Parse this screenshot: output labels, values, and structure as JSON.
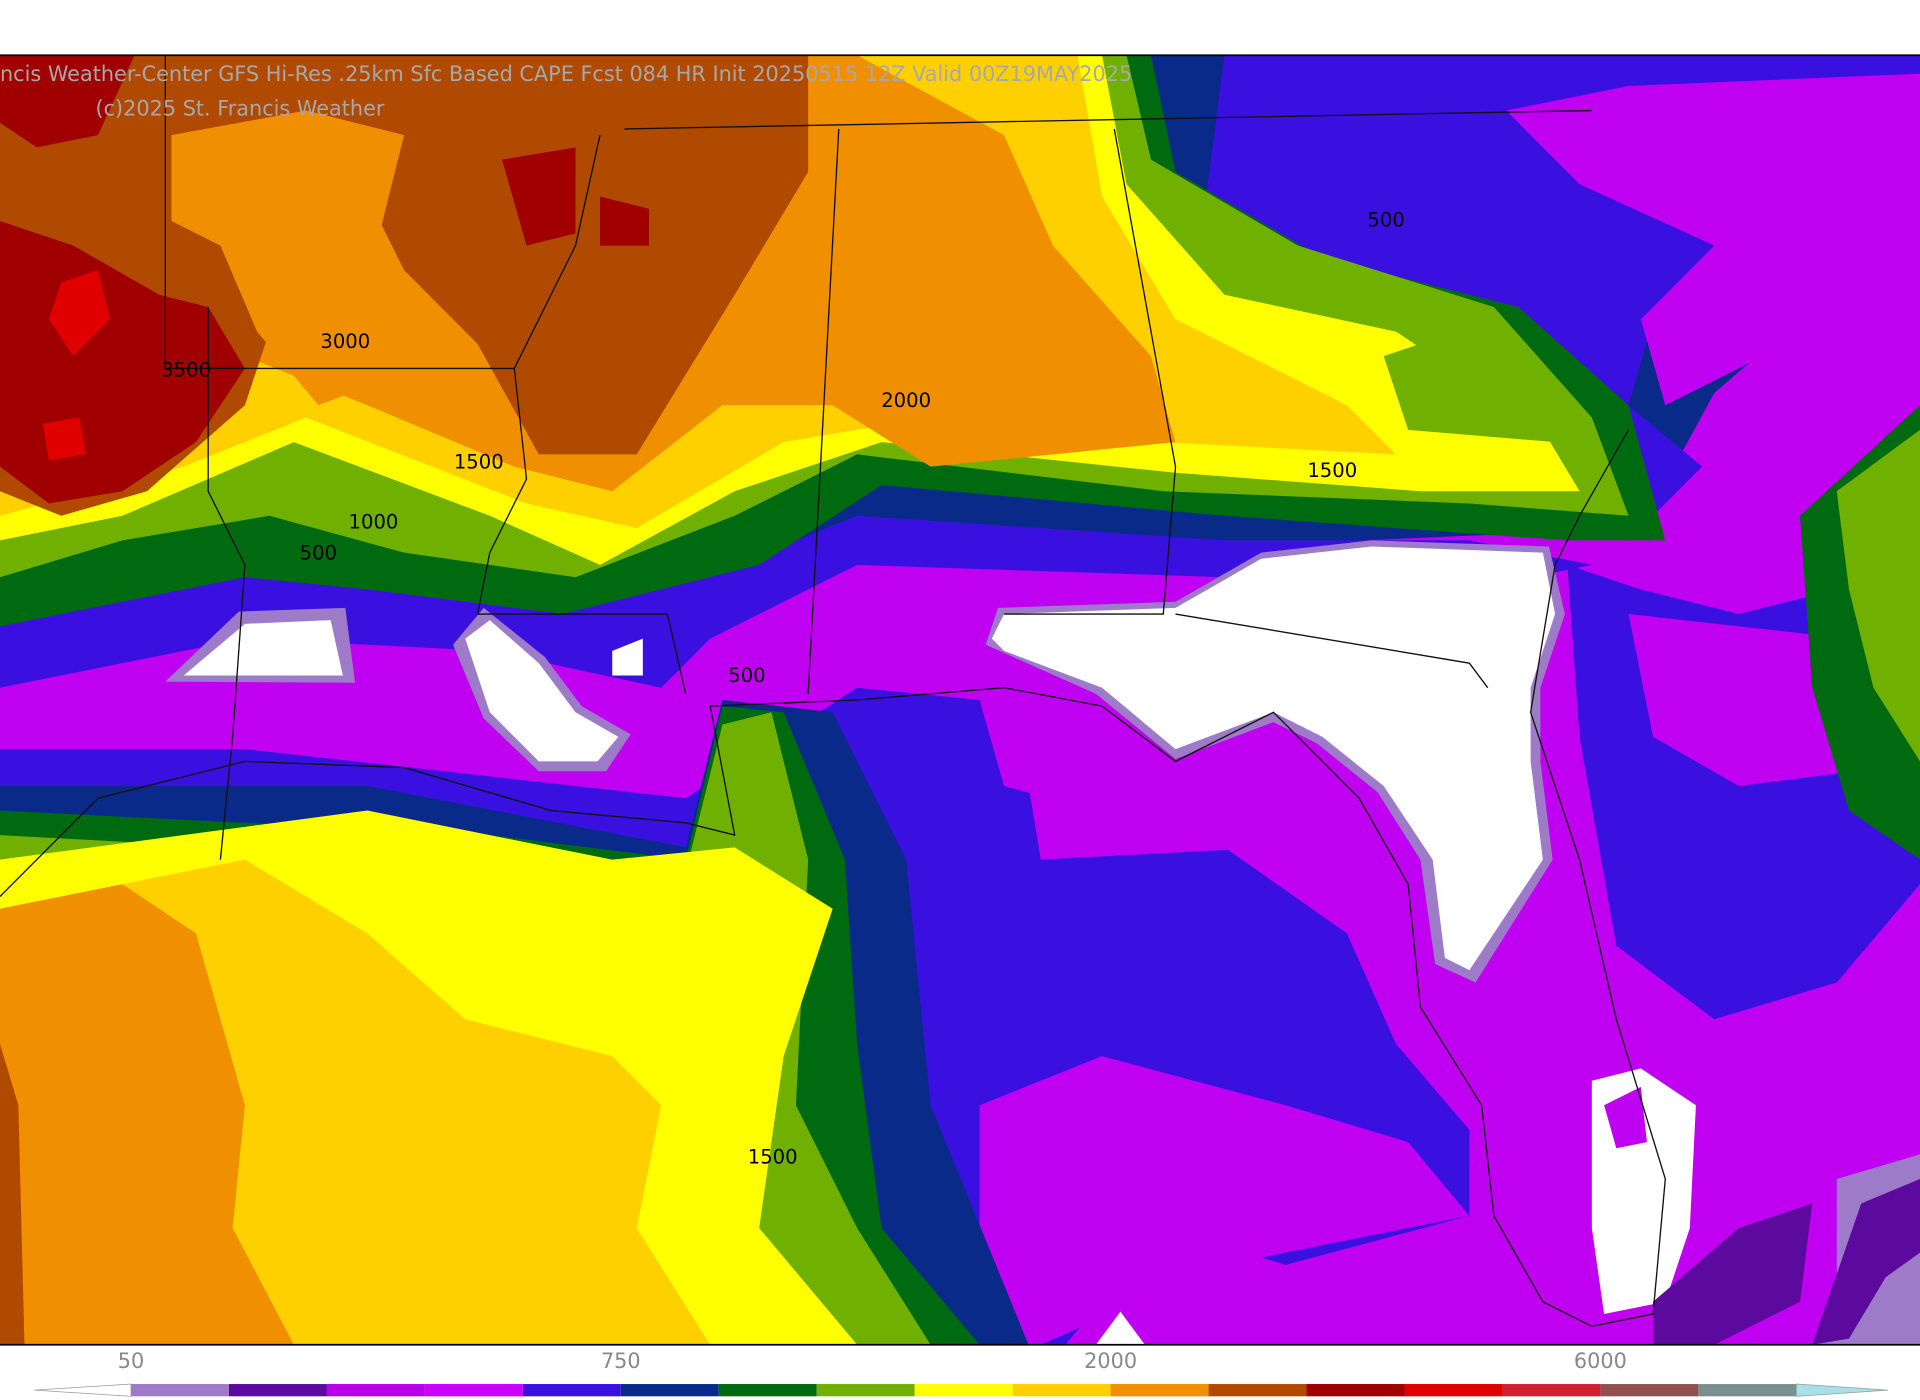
{
  "header": {
    "title": "ncis Weather-Center GFS Hi-Res .25km Sfc Based CAPE  Fcst 084 HR Init 20250515 12Z  Valid 00Z19MAY2025",
    "copyright": "(c)2025 St. Francis Weather"
  },
  "contour_labels": [
    "3000",
    "3500",
    "2000",
    "1500",
    "1500",
    "1000",
    "500",
    "500",
    "500",
    "1500"
  ],
  "colorbar": {
    "labels": [
      50,
      750,
      2000,
      6000
    ],
    "colors": [
      "#9e7bc9",
      "#5c0a9e",
      "#b800e8",
      "#cc00ff",
      "#3a10e0",
      "#0a2a8a",
      "#006a10",
      "#70b000",
      "#ffff00",
      "#ffd000",
      "#f09000",
      "#b04a00",
      "#a00000",
      "#e00000",
      "#d02030",
      "#905050",
      "#7a9090"
    ]
  }
}
